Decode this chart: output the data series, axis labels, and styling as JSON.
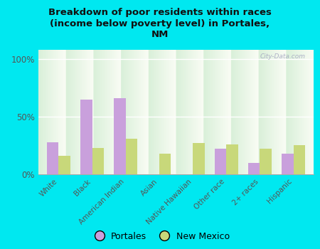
{
  "title": "Breakdown of poor residents within races\n(income below poverty level) in Portales,\nNM",
  "categories": [
    "White",
    "Black",
    "American Indian",
    "Asian",
    "Native Hawaiian",
    "Other race",
    "2+ races",
    "Hispanic"
  ],
  "portales": [
    28,
    65,
    66,
    0,
    0,
    22,
    10,
    18
  ],
  "new_mexico": [
    16,
    23,
    31,
    18,
    27,
    26,
    22,
    25
  ],
  "portales_color": "#c9a0dc",
  "new_mexico_color": "#c8d87a",
  "bg_outer": "#00e8f0",
  "bg_chart_top": "#d8eeda",
  "bg_chart_bottom": "#f8f8f0",
  "title_color": "#111111",
  "yticks": [
    0,
    50,
    100
  ],
  "ylabels": [
    "0%",
    "50%",
    "100%"
  ],
  "watermark": "City-Data.com",
  "bar_width": 0.35,
  "ylim": [
    0,
    108
  ],
  "legend_circle_size": 10
}
